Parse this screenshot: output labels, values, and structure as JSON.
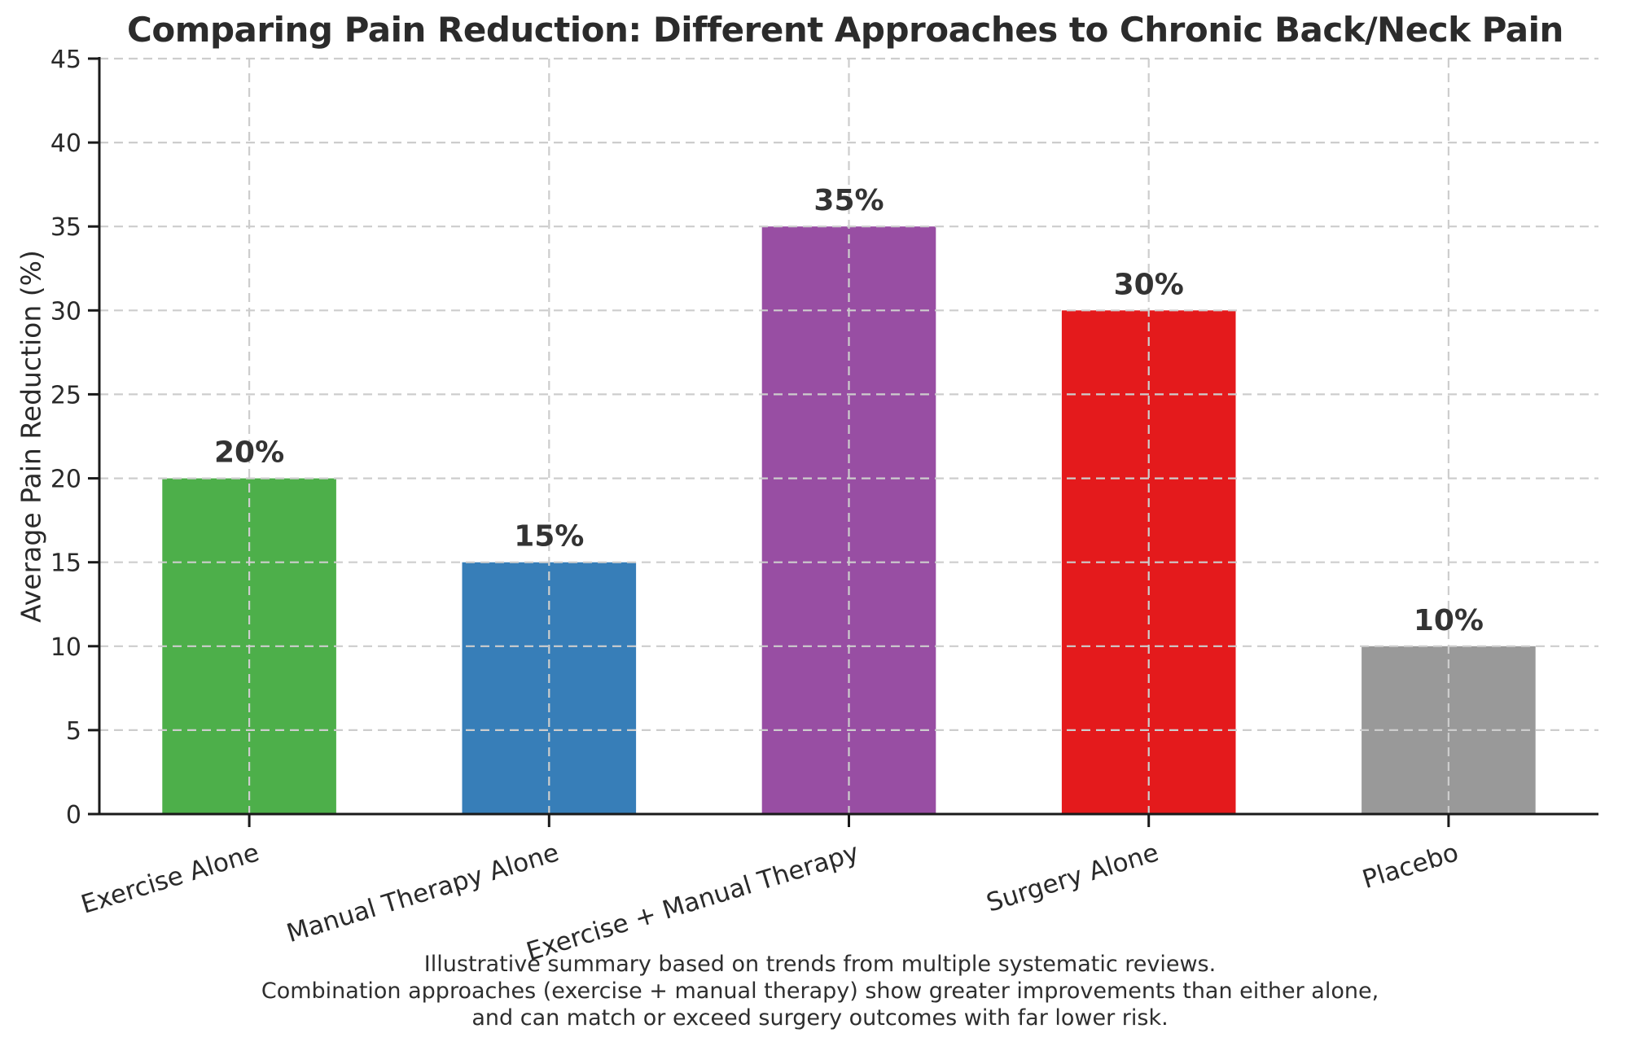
{
  "chart_data": {
    "type": "bar",
    "title": "Comparing Pain Reduction: Different Approaches to Chronic Back/Neck Pain",
    "xlabel": "",
    "ylabel": "Average Pain Reduction (%)",
    "categories": [
      "Exercise Alone",
      "Manual Therapy Alone",
      "Exercise + Manual Therapy",
      "Surgery Alone",
      "Placebo"
    ],
    "values": [
      20,
      15,
      35,
      30,
      10
    ],
    "value_labels": [
      "20%",
      "15%",
      "35%",
      "30%",
      "10%"
    ],
    "bar_colors": [
      "#4daf4a",
      "#377eb8",
      "#984ea3",
      "#e41a1c",
      "#999999"
    ],
    "ylim": [
      0,
      45
    ],
    "ytick_step": 5,
    "ytick_labels": [
      "0",
      "5",
      "10",
      "15",
      "20",
      "25",
      "30",
      "35",
      "40",
      "45"
    ],
    "grid": "dashed gridlines on both axes, drawn above bars",
    "legend": "none",
    "xtick_rotation_degrees": 17,
    "caption_lines": [
      "Illustrative summary based on trends from multiple systematic reviews.",
      "Combination approaches (exercise + manual therapy) show greater improvements than either alone,",
      "and can match or exceed surgery outcomes with far lower risk."
    ],
    "colors": {
      "grid": "#cdcdcd",
      "axis": "#1a1a1a",
      "title_text": "#2b2b2b",
      "tick_text": "#2a2a2a",
      "value_label_text": "#333333",
      "caption_text": "#2e2e2e",
      "background": "#ffffff"
    }
  }
}
